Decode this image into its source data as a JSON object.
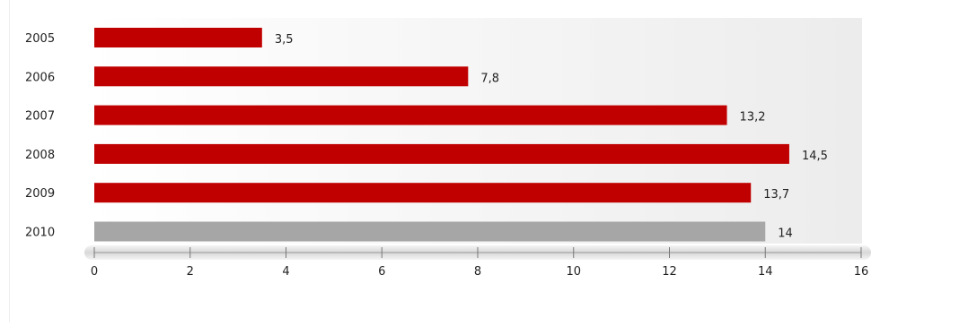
{
  "chart_data": {
    "type": "bar",
    "orientation": "horizontal",
    "categories": [
      "2005",
      "2006",
      "2007",
      "2008",
      "2009",
      "2010"
    ],
    "values": [
      3.5,
      7.8,
      13.2,
      14.5,
      13.7,
      14
    ],
    "value_labels": [
      "3,5",
      "7,8",
      "13,2",
      "14,5",
      "13,7",
      "14"
    ],
    "bar_colors": [
      "#c00000",
      "#c00000",
      "#c00000",
      "#c00000",
      "#c00000",
      "#a6a6a6"
    ],
    "xlim": [
      0,
      16
    ],
    "x_ticks": [
      0,
      2,
      4,
      6,
      8,
      10,
      12,
      14,
      16
    ],
    "title": "",
    "xlabel": "",
    "ylabel": "",
    "grid": false,
    "legend": "none"
  }
}
